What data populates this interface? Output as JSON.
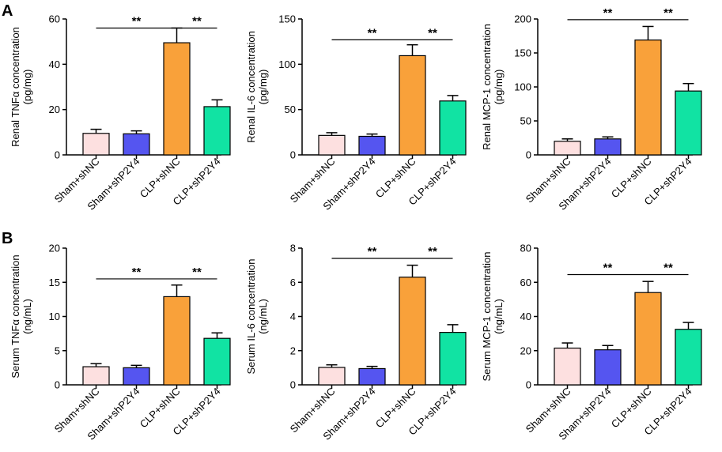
{
  "figure": {
    "panel_labels": [
      "A",
      "B"
    ],
    "colors": {
      "Sham+shNC": "#fde0e0",
      "Sham+shP2Y4": "#5555f0",
      "CLP+shNC": "#f9a13a",
      "CLP+shP2Y4": "#11e3a3"
    }
  },
  "chart_data": [
    {
      "type": "bar",
      "title": "",
      "ylabel": [
        "Renal TNFα concentration",
        "(pg/mg)"
      ],
      "categories": [
        "Sham+shNC",
        "Sham+shP2Y4",
        "CLP+shNC",
        "CLP+shP2Y4"
      ],
      "values": [
        9.5,
        9.3,
        49.5,
        21.3
      ],
      "errors": [
        1.8,
        1.3,
        6.5,
        3.0
      ],
      "ylim": [
        0,
        60
      ],
      "yticks": [
        0,
        20,
        40,
        60
      ],
      "significance": [
        {
          "from": 0,
          "to": 2,
          "label": "**",
          "y": 56
        },
        {
          "from": 2,
          "to": 3,
          "label": "**",
          "y": 56
        }
      ]
    },
    {
      "type": "bar",
      "title": "",
      "ylabel": [
        "Renal IL-6 concentration",
        "(pg/mg)"
      ],
      "categories": [
        "Sham+shNC",
        "Sham+shP2Y4",
        "CLP+shNC",
        "CLP+shP2Y4"
      ],
      "values": [
        21.5,
        20.5,
        109.5,
        59.5
      ],
      "errors": [
        3.0,
        2.5,
        12.0,
        6.0
      ],
      "ylim": [
        0,
        150
      ],
      "yticks": [
        0,
        50,
        100,
        150
      ],
      "significance": [
        {
          "from": 0,
          "to": 2,
          "label": "**",
          "y": 127
        },
        {
          "from": 2,
          "to": 3,
          "label": "**",
          "y": 127
        }
      ]
    },
    {
      "type": "bar",
      "title": "",
      "ylabel": [
        "Renal MCP-1 concentration",
        "(pg/mg)"
      ],
      "categories": [
        "Sham+shNC",
        "Sham+shP2Y4",
        "CLP+shNC",
        "CLP+shP2Y4"
      ],
      "values": [
        20.0,
        23.5,
        169.0,
        94.0
      ],
      "errors": [
        3.5,
        3.0,
        20.0,
        11.0
      ],
      "ylim": [
        0,
        200
      ],
      "yticks": [
        0,
        50,
        100,
        150,
        200
      ],
      "significance": [
        {
          "from": 0,
          "to": 2,
          "label": "**",
          "y": 199
        },
        {
          "from": 2,
          "to": 3,
          "label": "**",
          "y": 199
        }
      ]
    },
    {
      "type": "bar",
      "title": "",
      "ylabel": [
        "Serum TNFα concentration",
        "(ng/mL)"
      ],
      "categories": [
        "Sham+shNC",
        "Sham+shP2Y4",
        "CLP+shNC",
        "CLP+shP2Y4"
      ],
      "values": [
        2.65,
        2.5,
        12.9,
        6.8
      ],
      "errors": [
        0.45,
        0.35,
        1.7,
        0.8
      ],
      "ylim": [
        0,
        20
      ],
      "yticks": [
        0,
        5,
        10,
        15,
        20
      ],
      "significance": [
        {
          "from": 0,
          "to": 2,
          "label": "**",
          "y": 15.5
        },
        {
          "from": 2,
          "to": 3,
          "label": "**",
          "y": 15.5
        }
      ]
    },
    {
      "type": "bar",
      "title": "",
      "ylabel": [
        "Serum IL-6 concentration",
        "(ng/mL)"
      ],
      "categories": [
        "Sham+shNC",
        "Sham+shP2Y4",
        "CLP+shNC",
        "CLP+shP2Y4"
      ],
      "values": [
        1.02,
        0.95,
        6.3,
        3.07
      ],
      "errors": [
        0.15,
        0.13,
        0.7,
        0.45
      ],
      "ylim": [
        0,
        8
      ],
      "yticks": [
        0,
        2,
        4,
        6,
        8
      ],
      "significance": [
        {
          "from": 0,
          "to": 2,
          "label": "**",
          "y": 7.4
        },
        {
          "from": 2,
          "to": 3,
          "label": "**",
          "y": 7.4
        }
      ]
    },
    {
      "type": "bar",
      "title": "",
      "ylabel": [
        "Serum MCP-1 concentration",
        "(ng/mL)"
      ],
      "categories": [
        "Sham+shNC",
        "Sham+shP2Y4",
        "CLP+shNC",
        "CLP+shP2Y4"
      ],
      "values": [
        21.5,
        20.5,
        54.0,
        32.5
      ],
      "errors": [
        3.0,
        2.5,
        6.5,
        4.0
      ],
      "ylim": [
        0,
        80
      ],
      "yticks": [
        0,
        20,
        40,
        60,
        80
      ],
      "significance": [
        {
          "from": 0,
          "to": 2,
          "label": "**",
          "y": 64.5
        },
        {
          "from": 2,
          "to": 3,
          "label": "**",
          "y": 64.5
        }
      ]
    }
  ]
}
